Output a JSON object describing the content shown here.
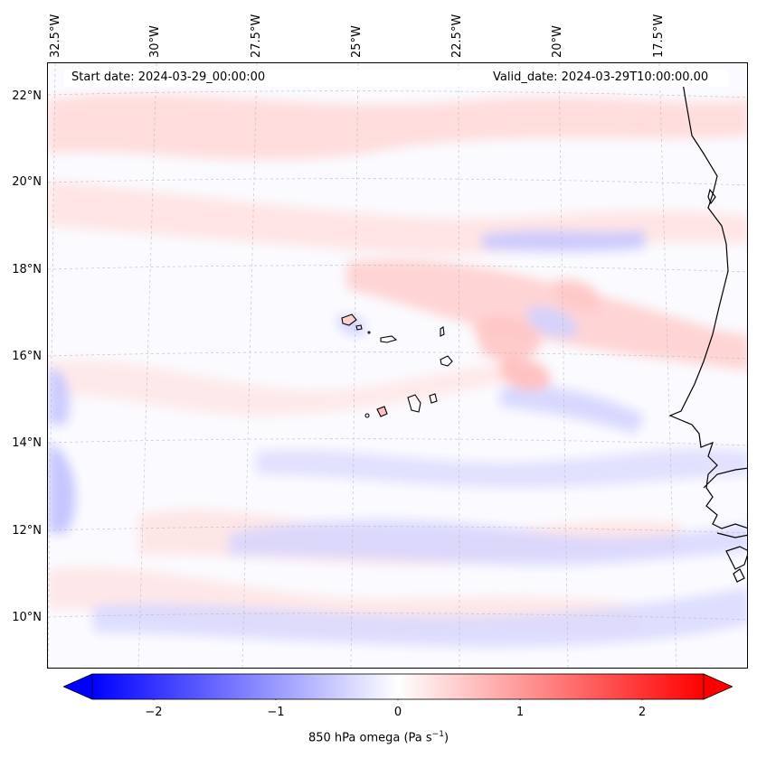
{
  "map": {
    "start_date_text": "Start date: 2024-03-29_00:00:00",
    "valid_date_text": "Valid_date: 2024-03-29T10:00:00.00",
    "longitude_labels": [
      "32.5°W",
      "30°W",
      "27.5°W",
      "25°W",
      "22.5°W",
      "20°W",
      "17.5°W"
    ],
    "latitude_labels": [
      "22°N",
      "20°N",
      "18°N",
      "16°N",
      "14°N",
      "12°N",
      "10°N"
    ],
    "projection": "lambert-conformal",
    "gridlines": true,
    "coastlines": [
      "Cape Verde islands",
      "West African coast"
    ]
  },
  "colorbar": {
    "ticks": [
      "−2",
      "−1",
      "0",
      "1",
      "2"
    ],
    "label_main": "850 hPa omega (Pa s",
    "label_sup": "−1",
    "label_close": ")",
    "range": [
      -2.5,
      2.5
    ],
    "colormap": "bwr",
    "extend": "both",
    "colors": {
      "low": "#0000ff",
      "mid": "#ffffff",
      "high": "#ff0000"
    }
  }
}
